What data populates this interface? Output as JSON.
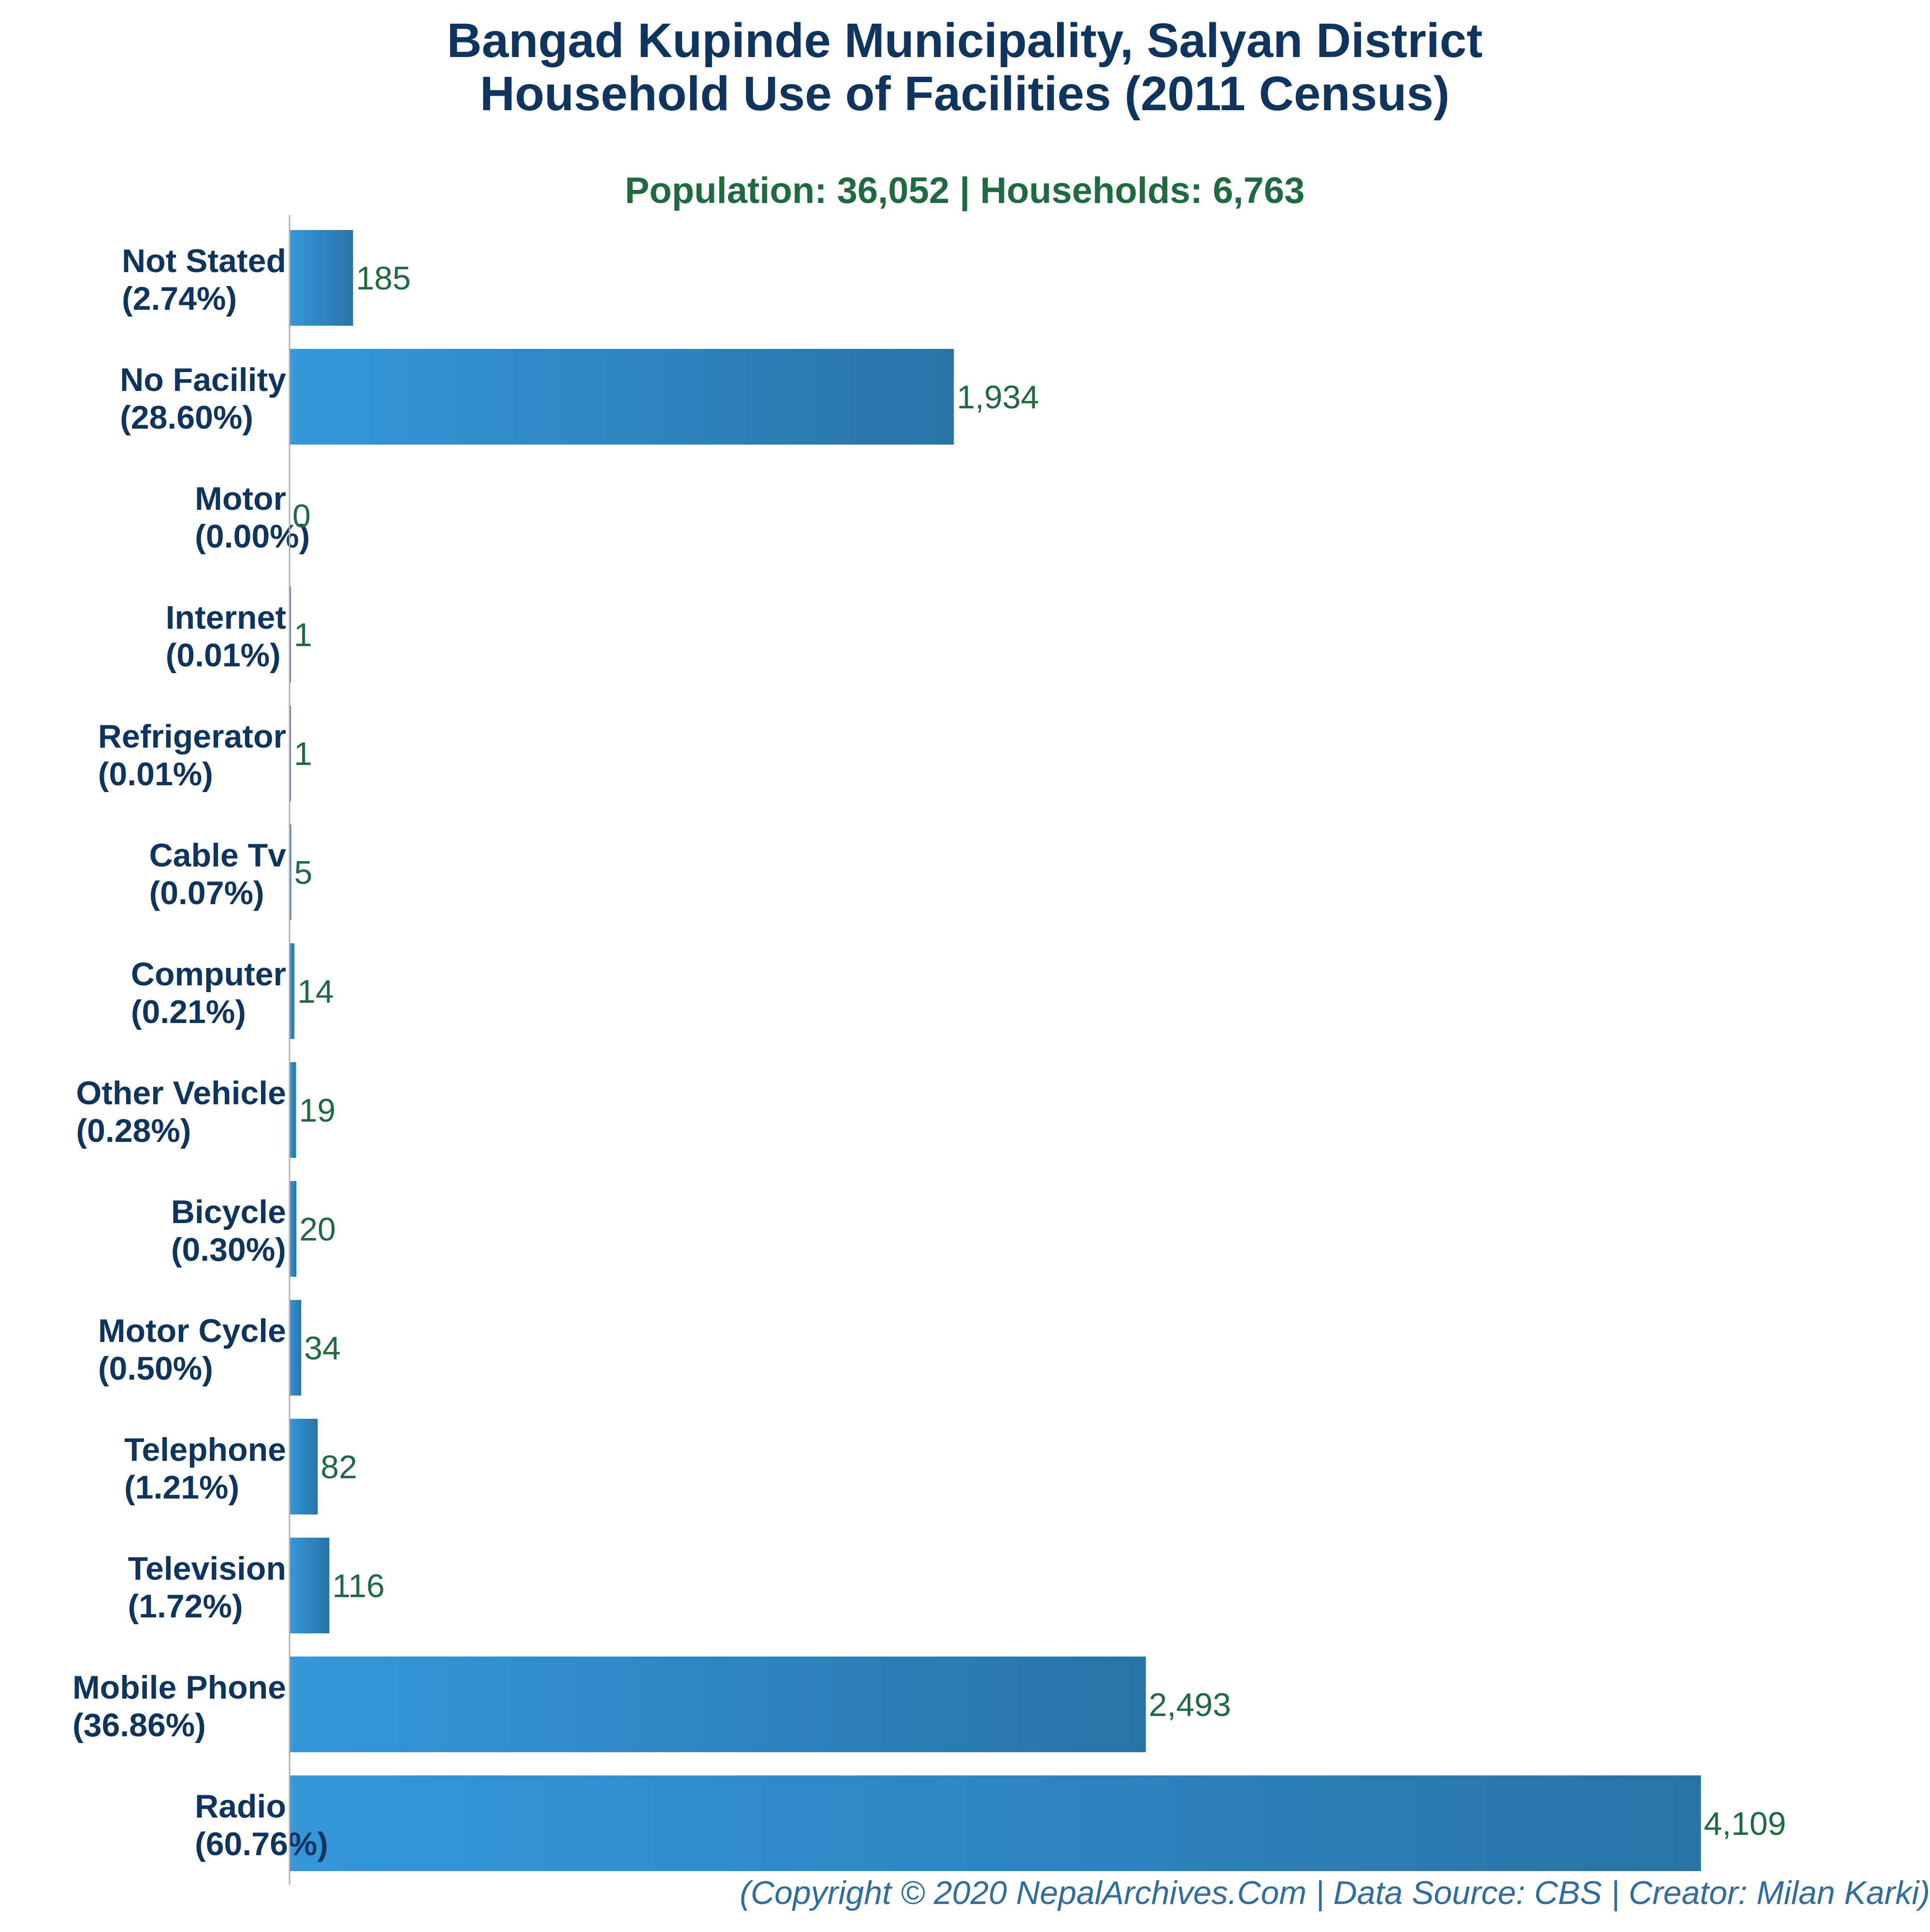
{
  "chart_data": {
    "type": "bar",
    "orientation": "horizontal",
    "title_line1": "Bangad Kupinde Municipality, Salyan District",
    "title_line2": "Household Use of Facilities (2011 Census)",
    "subtitle": "Population: 36,052 | Households: 6,763",
    "credit": "(Copyright © 2020 NepalArchives.Com | Data Source: CBS | Creator: Milan Karki)",
    "categories": [
      "Not Stated",
      "No Facility",
      "Motor",
      "Internet",
      "Refrigerator",
      "Cable Tv",
      "Computer",
      "Other Vehicle",
      "Bicycle",
      "Motor Cycle",
      "Telephone",
      "Television",
      "Mobile Phone",
      "Radio"
    ],
    "percent_labels": [
      "(2.74%)",
      "(28.60%)",
      "(0.00%)",
      "(0.01%)",
      "(0.01%)",
      "(0.07%)",
      "(0.21%)",
      "(0.28%)",
      "(0.30%)",
      "(0.50%)",
      "(1.21%)",
      "(1.72%)",
      "(36.86%)",
      "(60.76%)"
    ],
    "values": [
      185,
      1934,
      0,
      1,
      1,
      5,
      14,
      19,
      20,
      34,
      82,
      116,
      2493,
      4109
    ],
    "value_labels": [
      "185",
      "1,934",
      "0",
      "1",
      "1",
      "5",
      "14",
      "19",
      "20",
      "34",
      "82",
      "116",
      "2,493",
      "4,109"
    ],
    "xlim": [
      0,
      4109
    ],
    "grid": false,
    "colors": {
      "bar_light": "#3498db",
      "bar_dark": "#2874a6",
      "title": "#0d3560",
      "subtitle": "#1e6b3f",
      "category_label": "#0d3560",
      "value_label": "#1e6b3f",
      "credit": "#2e6da4",
      "axis": "#b0b0b0"
    }
  }
}
